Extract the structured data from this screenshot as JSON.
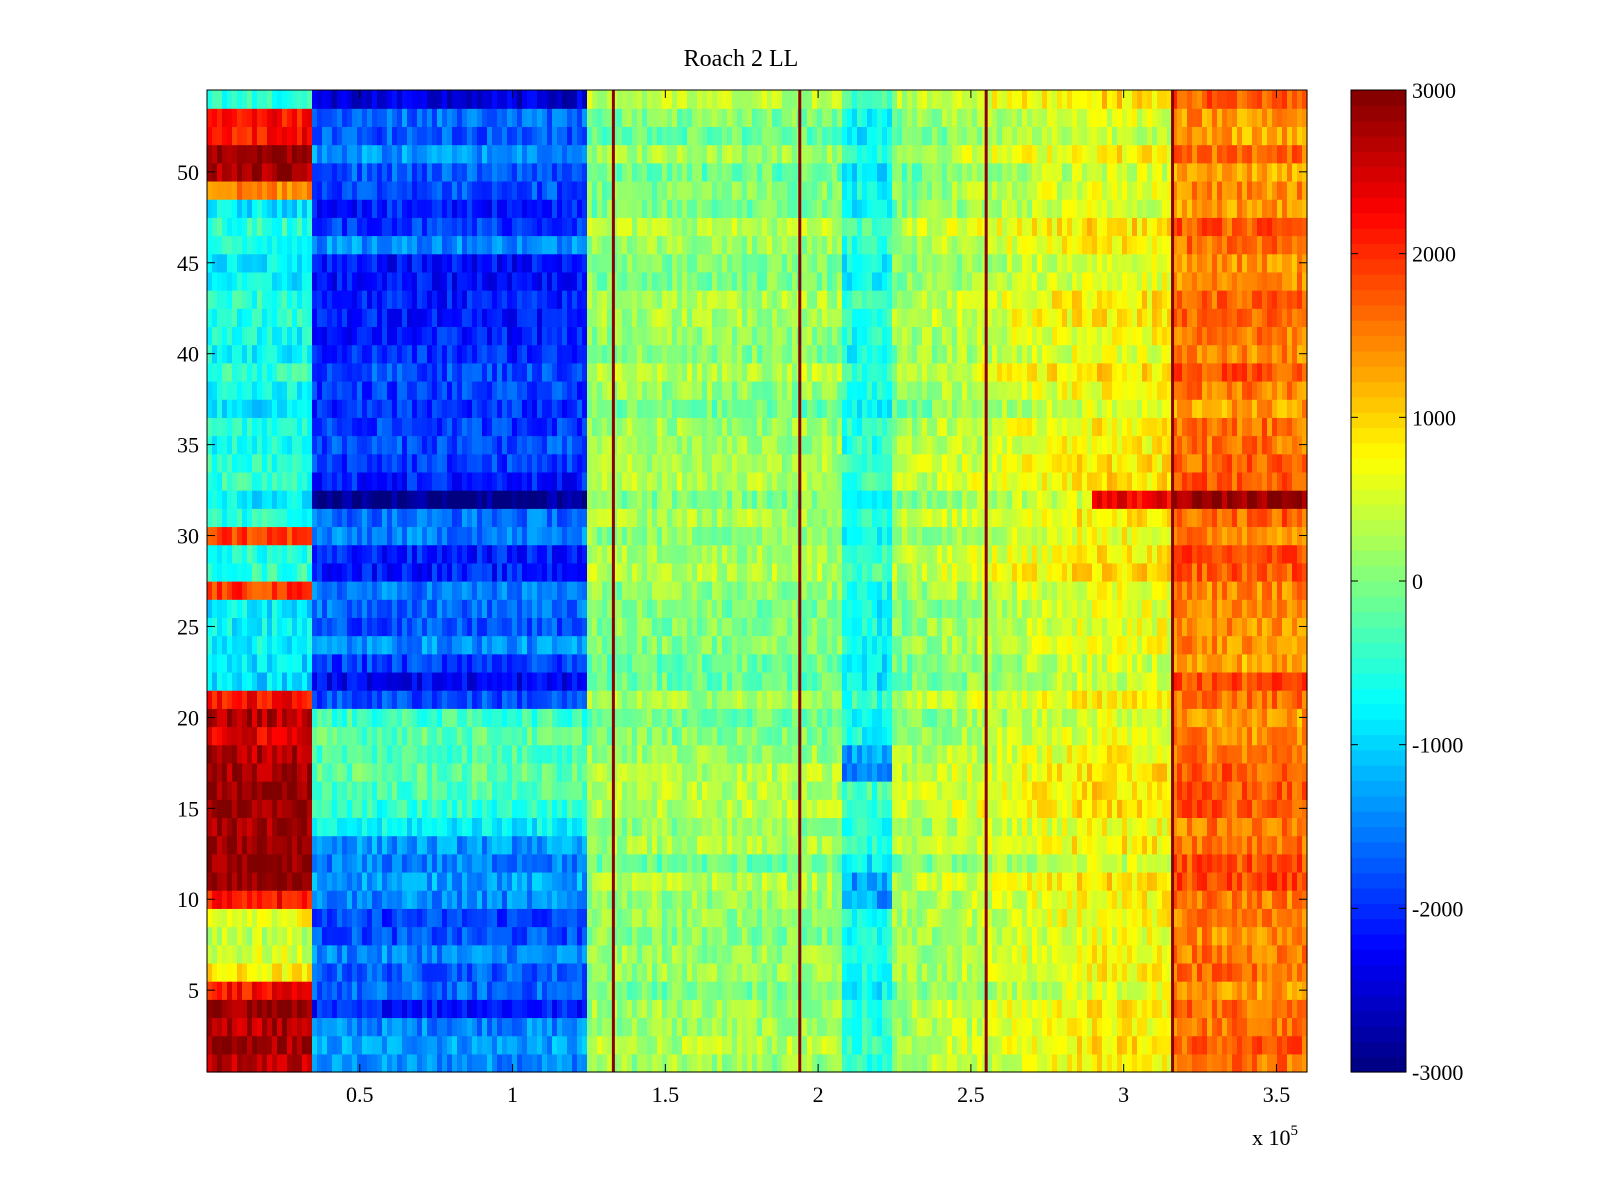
{
  "chart_data": {
    "type": "heatmap",
    "title": "Roach 2 LL",
    "xlabel": "",
    "ylabel": "",
    "x_multiplier_label": {
      "base": "x 10",
      "exponent": "5"
    },
    "xlim": [
      0,
      3.6
    ],
    "ylim": [
      0.5,
      54.5
    ],
    "x_ticks": [
      0.5,
      1,
      1.5,
      2,
      2.5,
      3,
      3.5
    ],
    "x_tick_labels": [
      "0.5",
      "1",
      "1.5",
      "2",
      "2.5",
      "3",
      "3.5"
    ],
    "y_ticks": [
      5,
      10,
      15,
      20,
      25,
      30,
      35,
      40,
      45,
      50
    ],
    "y_tick_labels": [
      "5",
      "10",
      "15",
      "20",
      "25",
      "30",
      "35",
      "40",
      "45",
      "50"
    ],
    "n_rows": 54,
    "colormap": "jet",
    "clim": [
      -3000,
      3000
    ],
    "colorbar_ticks": [
      3000,
      2000,
      1000,
      0,
      -1000,
      -2000,
      -3000
    ],
    "colorbar_tick_labels": [
      "3000",
      "2000",
      "1000",
      "0",
      "-1000",
      "-2000",
      "-3000"
    ],
    "segment_breaks_x": [
      0.35,
      1.33,
      1.94,
      2.55,
      3.16
    ],
    "segments": [
      {
        "x_range": [
          0,
          0.35
        ],
        "baseline": -700,
        "row_overrides": {
          "1": 2600,
          "2": 2800,
          "3": 2700,
          "4": 2900,
          "5": 2200,
          "6": 800,
          "7": 500,
          "8": 400,
          "9": 700,
          "10": 2200,
          "11": 2900,
          "12": 2800,
          "13": 2900,
          "14": 2800,
          "15": 2900,
          "16": 2900,
          "17": 2800,
          "18": 2700,
          "19": 2400,
          "20": 2700,
          "21": 2200,
          "27": 1900,
          "30": 1900,
          "49": 1500,
          "50": 2700,
          "51": 2900,
          "52": 2200,
          "53": 2200
        }
      },
      {
        "x_range": [
          0.35,
          1.25
        ],
        "baseline": -1500,
        "row_overrides": {
          "4": -2100,
          "6": -1700,
          "8": -1800,
          "9": -1900,
          "12": -1500,
          "14": -800,
          "15": -500,
          "16": -300,
          "17": -200,
          "18": -300,
          "19": -200,
          "20": -400,
          "21": -1800,
          "22": -2300,
          "23": -1900,
          "24": -1400,
          "25": -1800,
          "28": -2100,
          "29": -2100,
          "31": -1600,
          "32": -2900,
          "33": -2100,
          "34": -1900,
          "35": -1800,
          "36": -1900,
          "37": -2000,
          "38": -1900,
          "39": -1800,
          "40": -2000,
          "41": -2100,
          "42": -2100,
          "43": -2100,
          "44": -2200,
          "45": -2200,
          "47": -1900,
          "48": -2100,
          "49": -1800,
          "54": -2500
        }
      },
      {
        "x_range": [
          1.25,
          2.08
        ],
        "baseline": 100,
        "row_overrides": {}
      },
      {
        "x_range": [
          2.08,
          2.25
        ],
        "baseline": -600,
        "row_overrides": {
          "10": -1300,
          "11": -1300,
          "17": -1500,
          "18": -1300
        }
      },
      {
        "x_range": [
          2.25,
          2.9
        ],
        "baseline": 100,
        "row_overrides": {}
      },
      {
        "x_range": [
          2.9,
          3.16
        ],
        "baseline": 700,
        "row_overrides": {
          "32": 2300
        }
      },
      {
        "x_range": [
          3.16,
          3.6
        ],
        "baseline": 1500,
        "row_overrides": {
          "32": 2900,
          "29": 1800,
          "22": 1800,
          "11": 1800,
          "12": 1800
        }
      }
    ]
  }
}
